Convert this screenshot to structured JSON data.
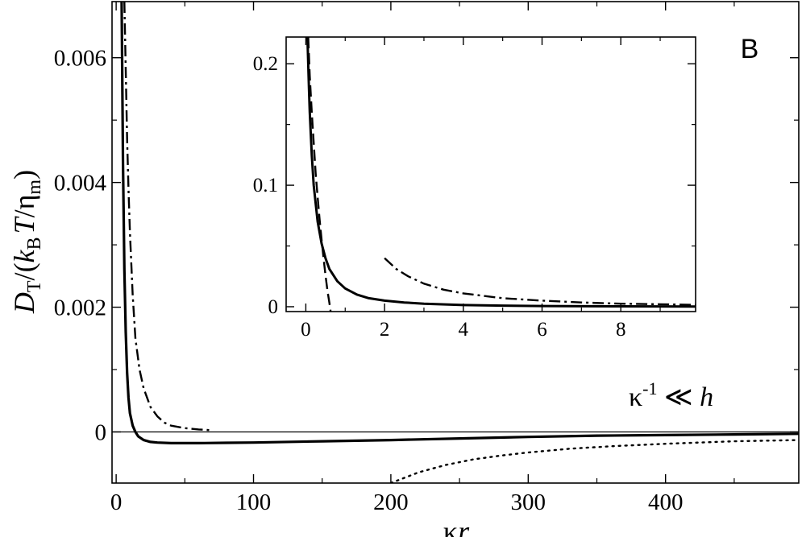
{
  "chart_data": [
    {
      "type": "line",
      "panel": "main",
      "xlabel": "κr",
      "ylabel": "D_T/(k_B T/η_m)",
      "ylabel_parts": {
        "D": "D",
        "T_sub": "T",
        "open": "/(",
        "k": "k",
        "B_sub": "B",
        "T": "T",
        "slash": "/",
        "eta": "η",
        "m_sub": "m",
        "close": ")"
      },
      "xlabel_parts": {
        "kappa": "κ",
        "r": "r"
      },
      "xlim": [
        -3,
        497
      ],
      "ylim": [
        -0.00082,
        0.0069
      ],
      "xticks": [
        0,
        100,
        200,
        300,
        400
      ],
      "xtick_labels": [
        "0",
        "100",
        "200",
        "300",
        "400"
      ],
      "yticks": [
        0,
        0.002,
        0.004,
        0.006
      ],
      "ytick_labels": [
        "0",
        "0.002",
        "0.004",
        "0.006"
      ],
      "zero_line": true,
      "panel_label": "B",
      "annotation": {
        "kappa": "κ",
        "sup": "-1",
        "rel": " ≪ ",
        "h": "h"
      },
      "series": [
        {
          "style": "solid",
          "x": [
            4,
            5,
            6,
            7,
            8,
            9,
            10,
            12,
            14,
            16,
            20,
            25,
            30,
            40,
            50,
            60,
            80,
            100,
            150,
            200,
            250,
            300,
            350,
            400,
            450,
            497
          ],
          "y": [
            0.0069,
            0.0043,
            0.0026,
            0.0016,
            0.00095,
            0.00055,
            0.0003,
            0.0001,
            0.0,
            -7e-05,
            -0.00013,
            -0.00016,
            -0.00017,
            -0.00018,
            -0.00018,
            -0.00018,
            -0.000175,
            -0.00017,
            -0.00015,
            -0.00013,
            -0.000105,
            -8e-05,
            -6e-05,
            -5e-05,
            -4e-05,
            -3e-05
          ]
        },
        {
          "style": "dashdot",
          "x": [
            6,
            7,
            8,
            9,
            10,
            12,
            14,
            17,
            20,
            25,
            30,
            35,
            40,
            50,
            60,
            68
          ],
          "y": [
            0.0069,
            0.0058,
            0.0047,
            0.0039,
            0.0032,
            0.0022,
            0.0015,
            0.001,
            0.0007,
            0.0004,
            0.00025,
            0.00015,
            0.0001,
            6e-05,
            4e-05,
            3e-05
          ]
        },
        {
          "style": "dotted",
          "x": [
            200,
            220,
            240,
            260,
            280,
            300,
            330,
            360,
            400,
            450,
            497
          ],
          "y": [
            -0.00082,
            -0.00065,
            -0.00053,
            -0.00044,
            -0.00038,
            -0.00033,
            -0.00027,
            -0.00023,
            -0.00019,
            -0.00015,
            -0.00013
          ]
        }
      ]
    },
    {
      "type": "line",
      "panel": "inset",
      "xlim": [
        -0.5,
        9.9
      ],
      "ylim": [
        -0.004,
        0.222
      ],
      "xticks": [
        0,
        2,
        4,
        6,
        8
      ],
      "xtick_labels": [
        "0",
        "2",
        "4",
        "6",
        "8"
      ],
      "yticks": [
        0,
        0.1,
        0.2
      ],
      "ytick_labels": [
        "0",
        "0.1",
        "0.2"
      ],
      "series": [
        {
          "style": "solid",
          "x": [
            0.04,
            0.06,
            0.08,
            0.1,
            0.15,
            0.2,
            0.3,
            0.4,
            0.5,
            0.6,
            0.8,
            1.0,
            1.3,
            1.6,
            2.0,
            2.5,
            3.0,
            4.0,
            5.0,
            6.0,
            8.0,
            9.9
          ],
          "y": [
            0.222,
            0.2,
            0.18,
            0.16,
            0.125,
            0.1,
            0.07,
            0.052,
            0.04,
            0.031,
            0.021,
            0.015,
            0.01,
            0.007,
            0.005,
            0.0035,
            0.0025,
            0.0014,
            0.0009,
            0.0006,
            0.0003,
            0.0002
          ]
        },
        {
          "style": "dashed",
          "x": [
            0.06,
            0.1,
            0.15,
            0.2,
            0.25,
            0.3,
            0.35,
            0.4,
            0.45,
            0.5,
            0.55,
            0.6,
            0.63
          ],
          "y": [
            0.222,
            0.19,
            0.16,
            0.135,
            0.11,
            0.09,
            0.072,
            0.055,
            0.04,
            0.026,
            0.013,
            0.003,
            -0.004
          ]
        },
        {
          "style": "dashdot",
          "x": [
            2.0,
            2.3,
            2.6,
            3.0,
            3.5,
            4.0,
            4.5,
            5.0,
            5.5,
            6.0,
            7.0,
            8.0,
            9.0,
            9.9
          ],
          "y": [
            0.04,
            0.031,
            0.025,
            0.019,
            0.014,
            0.011,
            0.009,
            0.007,
            0.006,
            0.005,
            0.0035,
            0.0025,
            0.002,
            0.0015
          ]
        }
      ]
    }
  ]
}
